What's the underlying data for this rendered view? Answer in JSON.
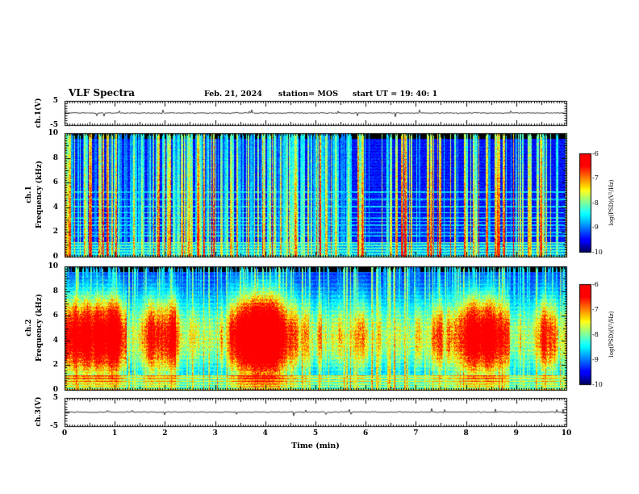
{
  "header": {
    "title": "VLF Spectra",
    "date": "Feb. 21, 2024",
    "station": "station= MOS",
    "start_ut": "start UT  =   19: 40: 1"
  },
  "xaxis": {
    "label": "Time (min)",
    "lim": [
      0,
      10
    ],
    "ticks": [
      0,
      1,
      2,
      3,
      4,
      5,
      6,
      7,
      8,
      9,
      10
    ]
  },
  "panels": {
    "wave1": {
      "ylabel": "ch.1(V)",
      "ylim": [
        -5,
        5
      ],
      "yticks": [
        5,
        -5
      ]
    },
    "spec1": {
      "ylabel_line1": "ch.1",
      "ylabel_line2": "Frequency (kHz)",
      "ylim": [
        0,
        10
      ],
      "yticks": [
        10,
        8,
        6,
        4,
        2,
        0
      ]
    },
    "spec2": {
      "ylabel_line1": "ch.2",
      "ylabel_line2": "Frequency (kHz)",
      "ylim": [
        0,
        10
      ],
      "yticks": [
        10,
        8,
        6,
        4,
        2,
        0
      ]
    },
    "wave3": {
      "ylabel": "ch.3(V)",
      "ylim": [
        -5,
        5
      ],
      "yticks": [
        5,
        -5
      ]
    }
  },
  "colorbars": [
    {
      "label": "log(PSD)(V²/Hz)",
      "lim": [
        -10,
        -6
      ],
      "ticks": [
        -6,
        -7,
        -8,
        -9,
        -10
      ]
    },
    {
      "label": "log(PSD)(V²/Hz)",
      "lim": [
        -10,
        -6
      ],
      "ticks": [
        -6,
        -7,
        -8,
        -9,
        -10
      ]
    }
  ],
  "chart_data": [
    {
      "type": "line",
      "panel": "ch.1 voltage strip",
      "ylabel": "ch.1(V)",
      "ylim": [
        -5,
        5
      ],
      "yticks": [
        5,
        -5
      ],
      "xlim": [
        0,
        10
      ],
      "series": [
        {
          "name": "ch.1 waveform",
          "summary": "flat trace at ~0 V across 0-10 min with sparse sub-volt impulsive spikes"
        }
      ]
    },
    {
      "type": "heatmap",
      "panel": "ch.1 spectrogram",
      "xlabel": "Time (min)",
      "ylabel": "ch.1 Frequency (kHz)",
      "xlim": [
        0,
        10
      ],
      "ylim": [
        0,
        10
      ],
      "yticks": [
        0,
        2,
        4,
        6,
        8,
        10
      ],
      "zlabel": "log(PSD)(V²/Hz)",
      "zlim": [
        -10,
        -6
      ],
      "colormap": "rainbow (blue=-10 ... red=-6)",
      "pattern": "dense broadband vertical impulsive streaks (sferics) spanning 0-10 kHz over a dark-blue ~-9.5 background; streaks densest from 0 to ~5.5 min and sparser 5.5-9.7 min; enhanced blue/cyan striped band below ~1.2 kHz; thin horizontal harmonic lines near 2-5 kHz; near-black low-power band above ~9.6 kHz"
    },
    {
      "type": "heatmap",
      "panel": "ch.2 spectrogram",
      "xlabel": "Time (min)",
      "ylabel": "ch.2 Frequency (kHz)",
      "xlim": [
        0,
        10
      ],
      "ylim": [
        0,
        10
      ],
      "yticks": [
        0,
        2,
        4,
        6,
        8,
        10
      ],
      "zlabel": "log(PSD)(V²/Hz)",
      "zlim": [
        -10,
        -6
      ],
      "colormap": "rainbow (blue=-10 ... red=-6)",
      "pattern": "continuous strong emission band ~1.5-8 kHz reaching -6 (red/orange cores) with strong amplitude modulation over the full 0-10 min; green/cyan band edges; dark-blue background above ~8.5 kHz; near-black band above ~9.6 kHz; blue/cyan striped band below ~1.2 kHz; vertical impulsive streaks superposed throughout"
    },
    {
      "type": "line",
      "panel": "ch.3 voltage strip",
      "ylabel": "ch.3(V)",
      "ylim": [
        -5,
        5
      ],
      "yticks": [
        5,
        -5
      ],
      "xlim": [
        0,
        10
      ],
      "series": [
        {
          "name": "ch.3 waveform",
          "summary": "flat trace at ~0 V across 0-10 min with very small noise"
        }
      ]
    }
  ]
}
